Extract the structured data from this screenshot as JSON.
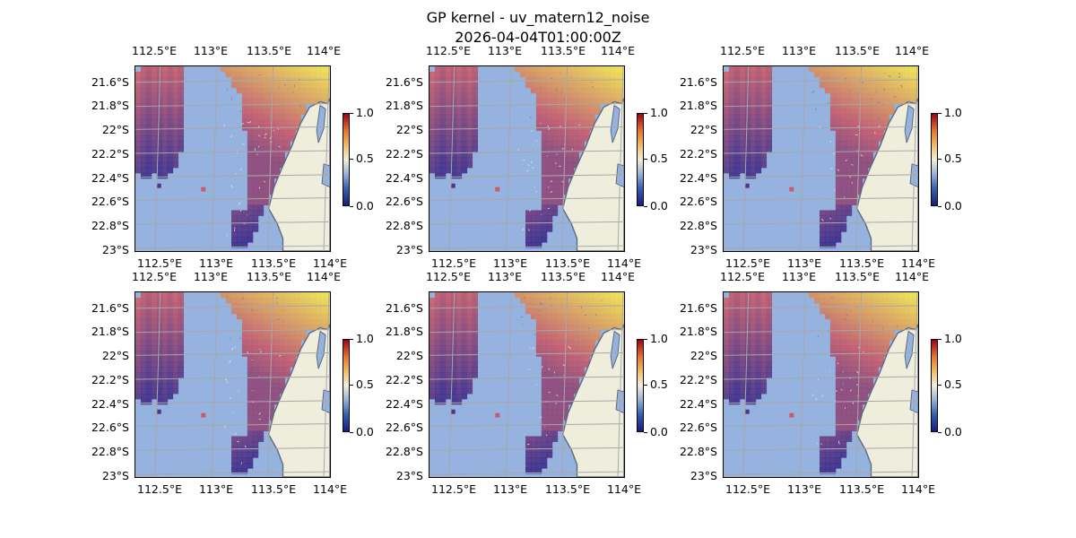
{
  "figure": {
    "title_line1": "GP kernel - uv_matern12_noise",
    "title_line2": "2026-04-04T01:00:00Z"
  },
  "axes": {
    "lon_ticks": [
      "112.5°E",
      "113°E",
      "113.5°E",
      "114°E"
    ],
    "lat_ticks": [
      "21.6°S",
      "21.8°S",
      "22°S",
      "22.2°S",
      "22.4°S",
      "22.6°S",
      "22.8°S",
      "23°S"
    ]
  },
  "colorbar": {
    "ticks": [
      "0.0",
      "0.5",
      "1.0"
    ]
  },
  "colors": {
    "ocean": "#95b3de",
    "land": "#efeedc",
    "coastline": "#5c6a80",
    "gridline": "#a8a8a8",
    "low": "#3a2a8a",
    "mid": "#c85a6a",
    "high": "#f8e84a"
  },
  "panels": [
    {
      "id": "p1"
    },
    {
      "id": "p2"
    },
    {
      "id": "p3"
    },
    {
      "id": "p4"
    },
    {
      "id": "p5"
    },
    {
      "id": "p6"
    }
  ]
}
